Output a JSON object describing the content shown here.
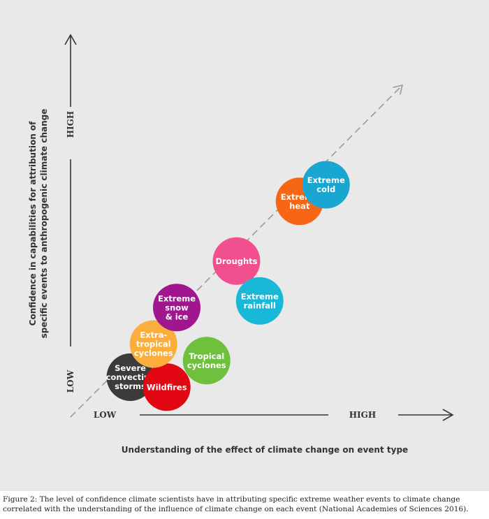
{
  "chart_data": {
    "type": "scatter",
    "title": "",
    "xlabel": "Understanding of the effect of climate change on event type",
    "ylabel_lines": [
      "Confidence in capabilities for attribution of",
      "specific events to anthropogenic climate change"
    ],
    "x_low_label": "LOW",
    "x_high_label": "HIGH",
    "y_low_label": "LOW",
    "y_high_label": "HIGH",
    "xlim": [
      0,
      1
    ],
    "ylim": [
      0,
      1
    ],
    "diagonal": {
      "style": "dashed",
      "from": [
        0,
        0
      ],
      "to": [
        1,
        1
      ]
    },
    "points": [
      {
        "label": [
          "Severe",
          "convective",
          "storms"
        ],
        "x": 0.18,
        "y": 0.12,
        "color": "#3b3b3b"
      },
      {
        "label": [
          "Wildfires"
        ],
        "x": 0.29,
        "y": 0.09,
        "color": "#e30613"
      },
      {
        "label": [
          "Extra-",
          "tropical",
          "cyclones"
        ],
        "x": 0.25,
        "y": 0.22,
        "color": "#fbae3c"
      },
      {
        "label": [
          "Extreme",
          "snow",
          "& ice"
        ],
        "x": 0.32,
        "y": 0.33,
        "color": "#a0168f"
      },
      {
        "label": [
          "Tropical",
          "cyclones"
        ],
        "x": 0.41,
        "y": 0.17,
        "color": "#6fc03d"
      },
      {
        "label": [
          "Droughts"
        ],
        "x": 0.5,
        "y": 0.47,
        "color": "#f24f8f"
      },
      {
        "label": [
          "Extreme",
          "rainfall"
        ],
        "x": 0.57,
        "y": 0.35,
        "color": "#19b8d8"
      },
      {
        "label": [
          "Extreme",
          "heat"
        ],
        "x": 0.69,
        "y": 0.65,
        "color": "#f76614"
      },
      {
        "label": [
          "Extreme",
          "cold"
        ],
        "x": 0.77,
        "y": 0.7,
        "color": "#19a7d2"
      }
    ]
  },
  "caption": {
    "label": "Figure 2:",
    "text": " The level of confidence climate scientists have in attributing specific extreme weather events to climate change correlated with the understanding of the influence of climate change on each event (National Academies of Sciences 2016)."
  }
}
